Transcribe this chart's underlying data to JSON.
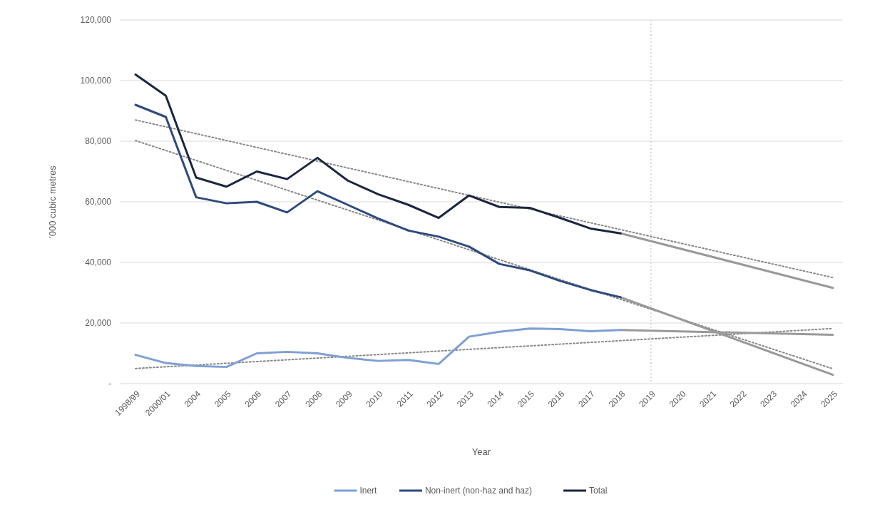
{
  "chart_data": {
    "type": "line",
    "xlabel": "Year",
    "ylabel": "'000 cubic metres",
    "categories": [
      "1998/99",
      "2000/01",
      "2004",
      "2005",
      "2006",
      "2007",
      "2008",
      "2009",
      "2010",
      "2011",
      "2012",
      "2013",
      "2014",
      "2015",
      "2016",
      "2017",
      "2018",
      "2019",
      "2020",
      "2021",
      "2022",
      "2023",
      "2024",
      "2025"
    ],
    "ylim": [
      0,
      120000
    ],
    "yticks": [
      {
        "value": 0,
        "label": "-"
      },
      {
        "value": 20000,
        "label": "20,000"
      },
      {
        "value": 40000,
        "label": "40,000"
      },
      {
        "value": 60000,
        "label": "60,000"
      },
      {
        "value": 80000,
        "label": "80,000"
      },
      {
        "value": 100000,
        "label": "100,000"
      },
      {
        "value": 120000,
        "label": "120,000"
      }
    ],
    "grid": "y",
    "legend": "bottom",
    "ref_lines": [
      {
        "axis": "x",
        "value": "2019",
        "color": "#bbbbbb",
        "line_style": "dotted"
      }
    ],
    "series": [
      {
        "values": [
          87000,
          null,
          null,
          null,
          null,
          null,
          null,
          null,
          null,
          null,
          null,
          null,
          null,
          null,
          null,
          null,
          null,
          null,
          null,
          null,
          null,
          null,
          null,
          35000
        ],
        "color": "#888888",
        "line_style": "dotted"
      },
      {
        "values": [
          80200,
          null,
          null,
          null,
          null,
          null,
          null,
          null,
          null,
          null,
          null,
          null,
          null,
          null,
          null,
          null,
          null,
          null,
          null,
          null,
          null,
          null,
          null,
          4900
        ],
        "color": "#888888",
        "line_style": "dotted"
      },
      {
        "values": [
          5000,
          null,
          null,
          null,
          null,
          null,
          null,
          null,
          null,
          null,
          null,
          null,
          null,
          null,
          null,
          null,
          null,
          null,
          null,
          null,
          null,
          null,
          null,
          18200
        ],
        "color": "#888888",
        "line_style": "dotted"
      },
      {
        "values": [
          null,
          null,
          null,
          null,
          null,
          null,
          null,
          null,
          null,
          null,
          null,
          null,
          null,
          null,
          null,
          null,
          49600,
          null,
          null,
          null,
          null,
          null,
          null,
          31600
        ],
        "color": "#999999",
        "line_style": "solid"
      },
      {
        "values": [
          null,
          null,
          null,
          null,
          null,
          null,
          null,
          null,
          null,
          null,
          null,
          null,
          null,
          null,
          null,
          null,
          28500,
          null,
          null,
          null,
          null,
          null,
          null,
          2900
        ],
        "color": "#999999",
        "line_style": "solid"
      },
      {
        "values": [
          null,
          null,
          null,
          null,
          null,
          null,
          null,
          null,
          null,
          null,
          null,
          null,
          null,
          null,
          null,
          null,
          17700,
          null,
          null,
          null,
          null,
          null,
          null,
          16100
        ],
        "color": "#999999",
        "line_style": "solid"
      },
      {
        "name": "Inert",
        "color": "#7f9fd4",
        "line_style": "solid",
        "values": [
          9500,
          6800,
          5800,
          5500,
          10000,
          10500,
          10000,
          8500,
          7500,
          7800,
          6500,
          15500,
          17100,
          18200,
          18000,
          17300,
          17700,
          null,
          null,
          null,
          null,
          null,
          null,
          null
        ]
      },
      {
        "name": "Non-inert (non-haz and haz)",
        "color": "#2e4a7d",
        "line_style": "solid",
        "values": [
          92000,
          88000,
          61500,
          59500,
          60000,
          56500,
          63500,
          59000,
          54500,
          50500,
          48500,
          45200,
          39500,
          37400,
          33900,
          30900,
          28500,
          null,
          null,
          null,
          null,
          null,
          null,
          null
        ]
      },
      {
        "name": "Total",
        "color": "#1c2640",
        "line_style": "solid",
        "values": [
          102000,
          95000,
          68000,
          65000,
          70000,
          67500,
          74500,
          67000,
          62500,
          59000,
          54700,
          62100,
          58300,
          58000,
          54700,
          51200,
          49600,
          null,
          null,
          null,
          null,
          null,
          null,
          null
        ]
      }
    ]
  }
}
